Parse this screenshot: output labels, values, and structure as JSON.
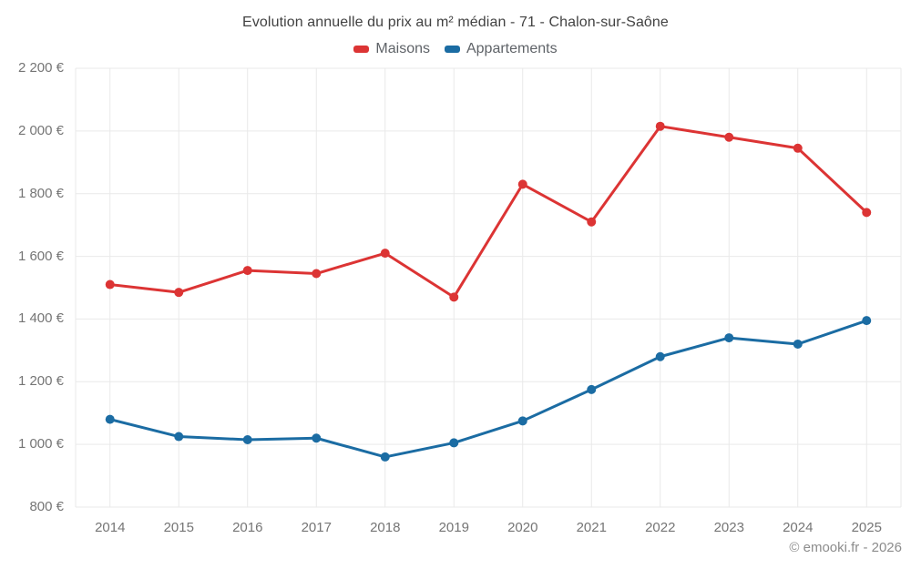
{
  "chart_data": {
    "type": "line",
    "title": "Evolution annuelle du prix au m² médian - 71 - Chalon-sur-Saône",
    "categories": [
      "2014",
      "2015",
      "2016",
      "2017",
      "2018",
      "2019",
      "2020",
      "2021",
      "2022",
      "2023",
      "2024",
      "2025"
    ],
    "series": [
      {
        "name": "Maisons",
        "color": "#dc3434",
        "values": [
          1510,
          1485,
          1555,
          1545,
          1610,
          1470,
          1830,
          1710,
          2015,
          1980,
          1945,
          1740
        ]
      },
      {
        "name": "Appartements",
        "color": "#1b6ca3",
        "values": [
          1080,
          1025,
          1015,
          1020,
          960,
          1005,
          1075,
          1175,
          1280,
          1340,
          1320,
          1395
        ]
      }
    ],
    "ylim": [
      800,
      2200
    ],
    "y_tick_values": [
      800,
      1000,
      1200,
      1400,
      1600,
      1800,
      2000,
      2200
    ],
    "y_tick_labels": [
      "800 €",
      "1 000 €",
      "1 200 €",
      "1 400 €",
      "1 600 €",
      "1 800 €",
      "2 000 €",
      "2 200 €"
    ],
    "xlabel": "",
    "ylabel": "",
    "grid": true,
    "legend_position": "top",
    "marker": "circle"
  },
  "footer": {
    "credit": "© emooki.fr - 2026"
  },
  "colors": {
    "background": "#ffffff",
    "gridline": "#e9e9e9",
    "title_text": "#424242",
    "legend_text": "#5f6368",
    "tick_text": "#757575",
    "credit_text": "#8c8c8c"
  }
}
